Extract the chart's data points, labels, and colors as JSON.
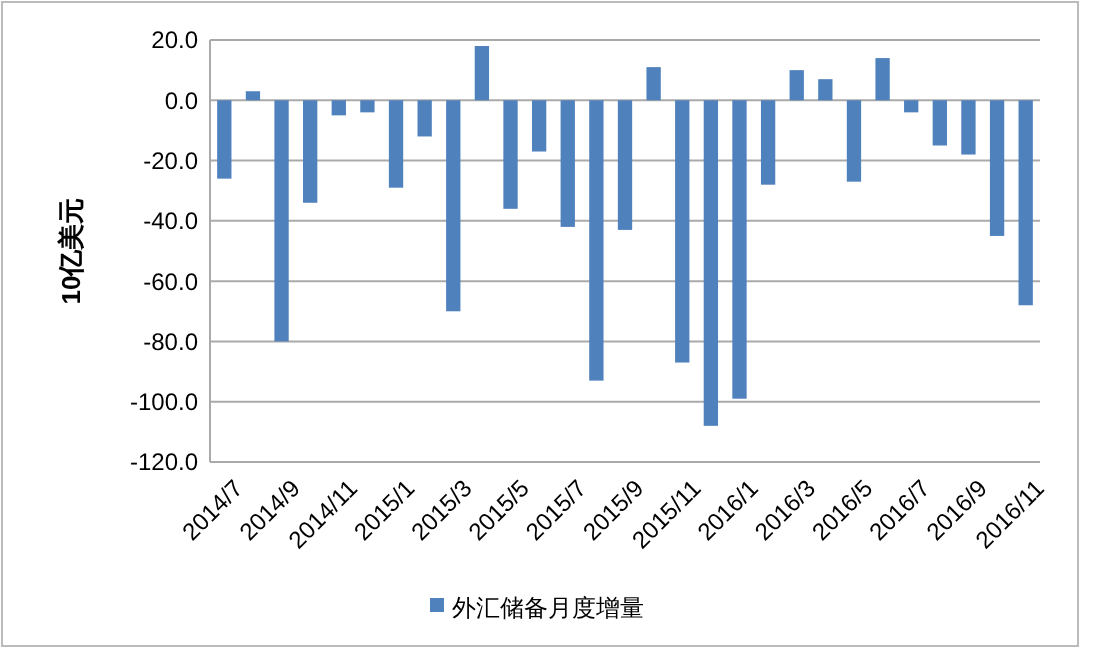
{
  "chart_data": {
    "type": "bar",
    "ylabel": "10亿美元",
    "categories": [
      "2014/7",
      null,
      "2014/9",
      null,
      "2014/11",
      null,
      "2015/1",
      null,
      "2015/3",
      null,
      "2015/5",
      null,
      "2015/7",
      null,
      "2015/9",
      null,
      "2015/11",
      null,
      "2016/1",
      null,
      "2016/3",
      null,
      "2016/5",
      null,
      "2016/7",
      null,
      "2016/9",
      null,
      "2016/11"
    ],
    "series": [
      {
        "name": "外汇储备月度增量",
        "color": "#4f81bd",
        "values": [
          -26,
          3,
          -80,
          -34,
          -5,
          -4,
          -29,
          -12,
          -70,
          18,
          -36,
          -17,
          -42,
          -93,
          -43,
          11,
          -87,
          -108,
          -99,
          -28,
          10,
          7,
          -27,
          14,
          -4,
          -15,
          -18,
          -45,
          -68
        ]
      }
    ],
    "ylim": [
      -120,
      20
    ],
    "yticks": [
      {
        "value": -120,
        "label": "-120.0"
      },
      {
        "value": -100,
        "label": "-100.0"
      },
      {
        "value": -80,
        "label": "-80.0"
      },
      {
        "value": -60,
        "label": "-60.0"
      },
      {
        "value": -40,
        "label": "-40.0"
      },
      {
        "value": -20,
        "label": "-20.0"
      },
      {
        "value": 0,
        "label": "0.0"
      },
      {
        "value": 20,
        "label": "20.0"
      }
    ],
    "grid": "y",
    "legend": "bottom"
  }
}
